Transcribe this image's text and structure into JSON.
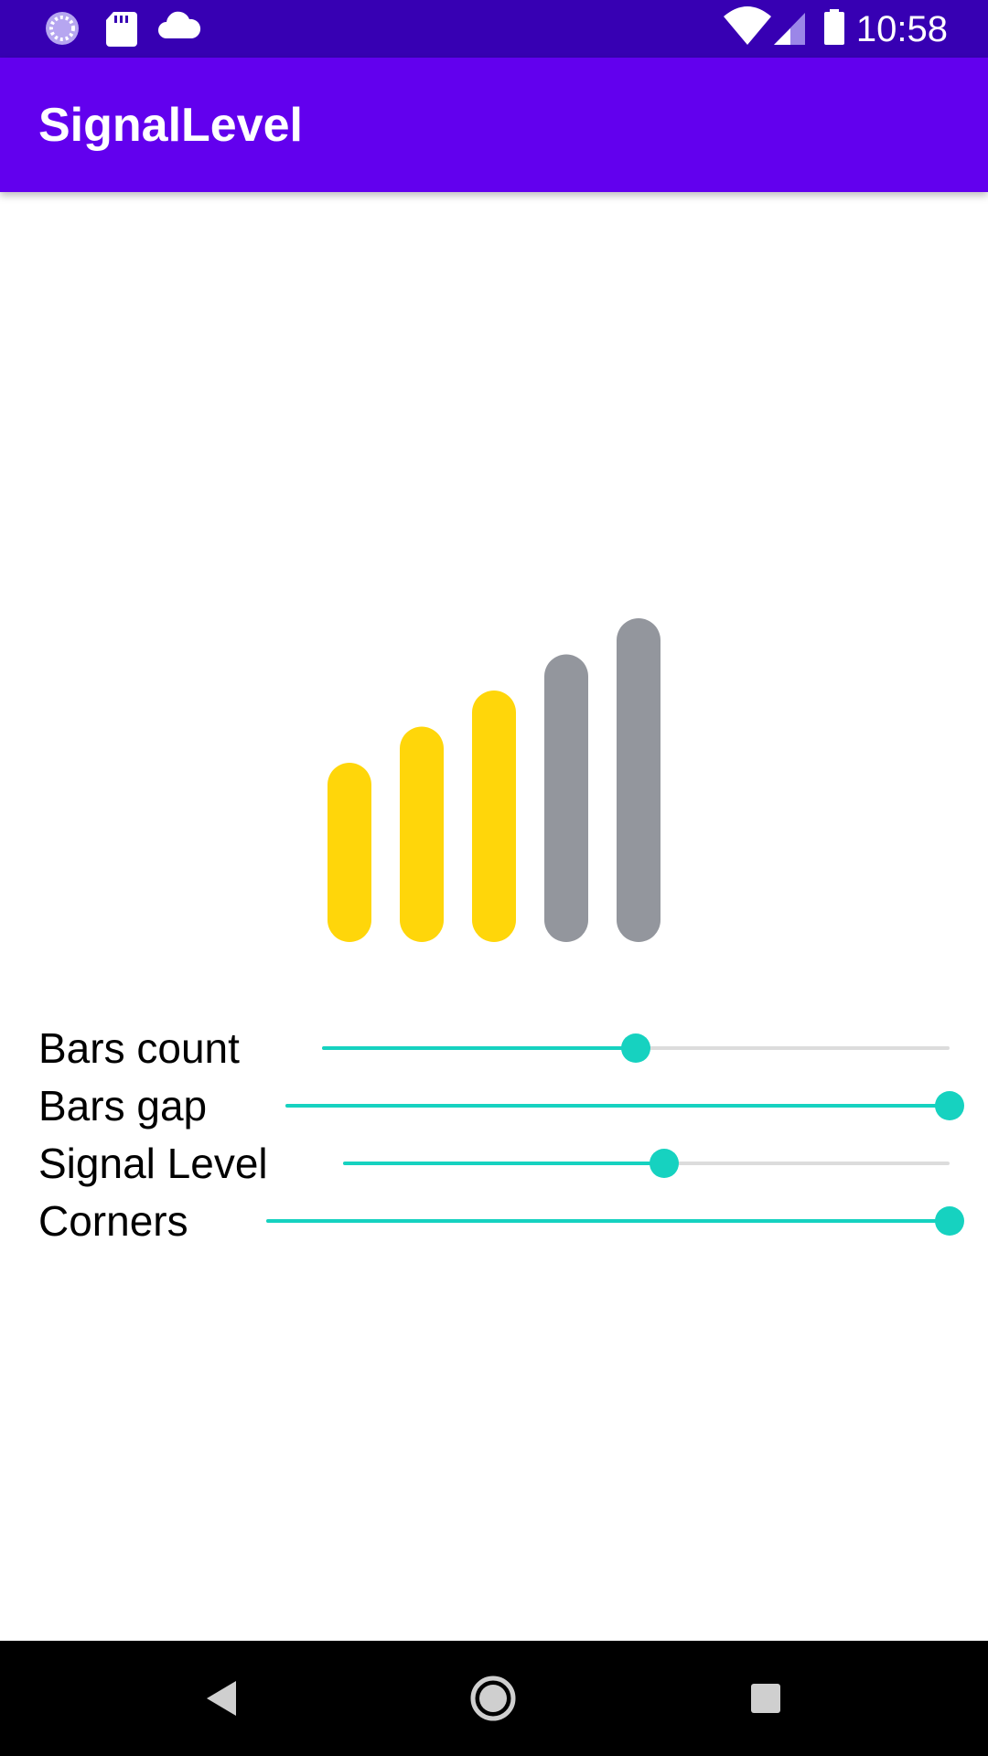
{
  "status_bar": {
    "time": "10:58",
    "left_icons": [
      "loading-icon",
      "sd-card-icon",
      "cloud-icon"
    ],
    "right_icons": [
      "wifi-icon",
      "cell-signal-icon",
      "battery-icon"
    ]
  },
  "app_bar": {
    "title": "SignalLevel"
  },
  "signal": {
    "bars_count": 5,
    "active_bars": 3,
    "active_color": "#ffd60a",
    "inactive_color": "#93969d"
  },
  "sliders": [
    {
      "label": "Bars count",
      "value": 0.5
    },
    {
      "label": "Bars gap",
      "value": 1.0
    },
    {
      "label": "Signal Level",
      "value": 0.53
    },
    {
      "label": "Corners",
      "value": 1.0
    }
  ],
  "colors": {
    "status_bar": "#3700b3",
    "app_bar": "#6200ee",
    "slider_accent": "#16d2c0",
    "slider_track": "#dcdcdc"
  },
  "nav_bar": {
    "buttons": [
      "back-icon",
      "home-icon",
      "recents-icon"
    ]
  }
}
